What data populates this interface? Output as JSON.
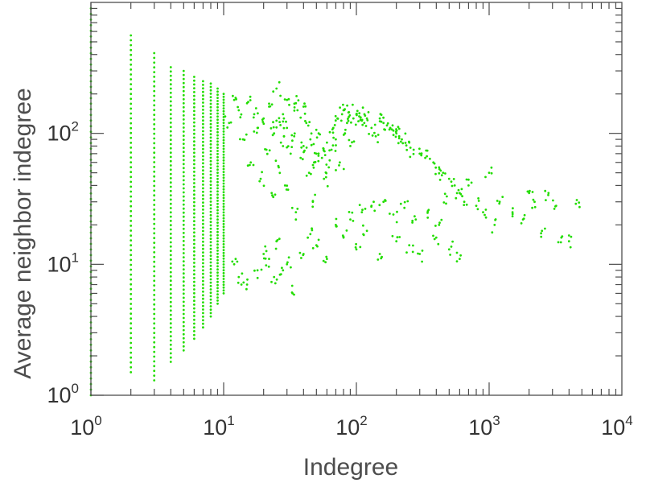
{
  "chart_data": {
    "type": "scatter",
    "title": "",
    "xlabel": "Indegree",
    "ylabel": "Average neighbor indegree",
    "xscale": "log",
    "yscale": "log",
    "xlim": [
      1,
      10000
    ],
    "ylim": [
      1,
      1000
    ],
    "xticks": [
      {
        "base": "10",
        "exp": "0"
      },
      {
        "base": "10",
        "exp": "1"
      },
      {
        "base": "10",
        "exp": "2"
      },
      {
        "base": "10",
        "exp": "3"
      },
      {
        "base": "10",
        "exp": "4"
      }
    ],
    "yticks": [
      {
        "base": "10",
        "exp": "0"
      },
      {
        "base": "10",
        "exp": "1"
      },
      {
        "base": "10",
        "exp": "2"
      }
    ],
    "grid": false,
    "legend": "none",
    "marker_color": "#22dd00",
    "series": [
      {
        "points_note": "",
        "columns": [
          {
            "x": 1,
            "ymin": 1.0,
            "ymax": 900
          },
          {
            "x": 2,
            "ymin": 1.5,
            "ymax": 560
          },
          {
            "x": 3,
            "ymin": 1.3,
            "ymax": 410
          },
          {
            "x": 4,
            "ymin": 1.8,
            "ymax": 320
          },
          {
            "x": 5,
            "ymin": 2.2,
            "ymax": 300
          },
          {
            "x": 6,
            "ymin": 2.7,
            "ymax": 270
          },
          {
            "x": 7,
            "ymin": 3.3,
            "ymax": 250
          },
          {
            "x": 8,
            "ymin": 4.0,
            "ymax": 240
          },
          {
            "x": 9,
            "ymin": 5.0,
            "ymax": 220
          },
          {
            "x": 10,
            "ymin": 6.0,
            "ymax": 200
          }
        ],
        "points": [
          [
            11,
            120
          ],
          [
            12,
            180
          ],
          [
            13,
            150
          ],
          [
            14,
            90
          ],
          [
            15,
            170
          ],
          [
            16,
            60
          ],
          [
            17,
            140
          ],
          [
            18,
            110
          ],
          [
            19,
            45
          ],
          [
            20,
            130
          ],
          [
            21,
            75
          ],
          [
            22,
            160
          ],
          [
            23,
            35
          ],
          [
            24,
            100
          ],
          [
            25,
            125
          ],
          [
            26,
            55
          ],
          [
            27,
            85
          ],
          [
            28,
            140
          ],
          [
            29,
            40
          ],
          [
            30,
            110
          ],
          [
            32,
            70
          ],
          [
            34,
            95
          ],
          [
            35,
            25
          ],
          [
            36,
            150
          ],
          [
            38,
            65
          ],
          [
            40,
            80
          ],
          [
            42,
            120
          ],
          [
            44,
            50
          ],
          [
            45,
            90
          ],
          [
            47,
            30
          ],
          [
            48,
            60
          ],
          [
            50,
            70
          ],
          [
            52,
            100
          ],
          [
            55,
            65
          ],
          [
            57,
            45
          ],
          [
            60,
            85
          ],
          [
            62,
            55
          ],
          [
            65,
            75
          ],
          [
            67,
            110
          ],
          [
            70,
            90
          ],
          [
            72,
            130
          ],
          [
            75,
            60
          ],
          [
            78,
            140
          ],
          [
            80,
            150
          ],
          [
            82,
            100
          ],
          [
            85,
            120
          ],
          [
            88,
            145
          ],
          [
            90,
            80
          ],
          [
            95,
            130
          ],
          [
            100,
            140
          ],
          [
            105,
            135
          ],
          [
            110,
            125
          ],
          [
            115,
            140
          ],
          [
            120,
            130
          ],
          [
            130,
            110
          ],
          [
            140,
            95
          ],
          [
            150,
            130
          ],
          [
            160,
            120
          ],
          [
            170,
            115
          ],
          [
            180,
            110
          ],
          [
            190,
            105
          ],
          [
            200,
            100
          ],
          [
            210,
            95
          ],
          [
            220,
            90
          ],
          [
            250,
            85
          ],
          [
            270,
            75
          ],
          [
            300,
            70
          ],
          [
            330,
            65
          ],
          [
            380,
            60
          ],
          [
            420,
            55
          ],
          [
            450,
            50
          ],
          [
            500,
            45
          ],
          [
            550,
            40
          ],
          [
            600,
            35
          ],
          [
            650,
            30
          ],
          [
            700,
            40
          ],
          [
            800,
            28
          ],
          [
            900,
            25
          ],
          [
            1000,
            50
          ],
          [
            1100,
            20
          ],
          [
            1200,
            30
          ],
          [
            1500,
            25
          ],
          [
            1800,
            22
          ],
          [
            2000,
            35
          ],
          [
            2200,
            30
          ],
          [
            2500,
            18
          ],
          [
            2800,
            35
          ],
          [
            3200,
            28
          ],
          [
            3500,
            16
          ],
          [
            4000,
            15
          ],
          [
            4500,
            29
          ],
          [
            25,
            220
          ],
          [
            30,
            180
          ],
          [
            35,
            170
          ],
          [
            40,
            160
          ],
          [
            20,
            12
          ],
          [
            25,
            15
          ],
          [
            30,
            10
          ],
          [
            40,
            12
          ],
          [
            50,
            14
          ],
          [
            60,
            11
          ],
          [
            80,
            16
          ],
          [
            100,
            13
          ],
          [
            120,
            18
          ],
          [
            150,
            12
          ],
          [
            200,
            15
          ],
          [
            250,
            14
          ],
          [
            300,
            12
          ],
          [
            400,
            16
          ],
          [
            500,
            13
          ],
          [
            600,
            11
          ],
          [
            33,
            6
          ],
          [
            24,
            8
          ],
          [
            18,
            9
          ],
          [
            15,
            7
          ],
          [
            13,
            8
          ],
          [
            12,
            10
          ],
          [
            22,
            11
          ],
          [
            28,
            9
          ],
          [
            45,
            17
          ],
          [
            70,
            20
          ],
          [
            90,
            22
          ],
          [
            110,
            25
          ],
          [
            130,
            28
          ],
          [
            160,
            30
          ],
          [
            190,
            24
          ],
          [
            230,
            27
          ],
          [
            280,
            22
          ],
          [
            350,
            26
          ],
          [
            420,
            20
          ],
          [
            480,
            33
          ]
        ]
      }
    ]
  }
}
